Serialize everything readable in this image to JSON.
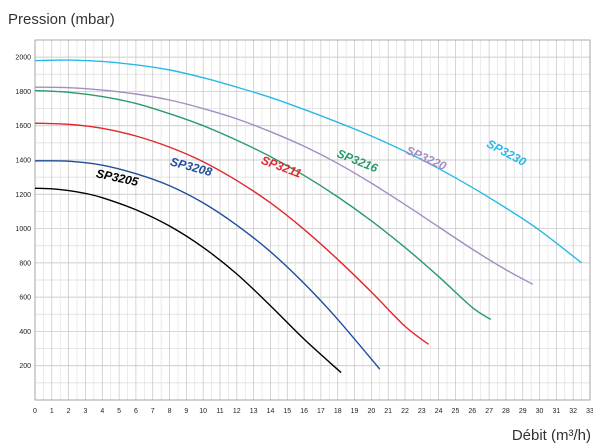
{
  "chart_data": {
    "type": "line",
    "title": "",
    "ylabel": "Pression (mbar)",
    "xlabel": "Débit (m³/h)",
    "xlim": [
      0,
      33
    ],
    "ylim": [
      0,
      2100
    ],
    "x_ticks": [
      0,
      1,
      2,
      3,
      4,
      5,
      6,
      7,
      8,
      9,
      10,
      11,
      12,
      13,
      14,
      15,
      16,
      17,
      18,
      19,
      20,
      21,
      22,
      23,
      24,
      25,
      26,
      27,
      28,
      29,
      30,
      31,
      32,
      33
    ],
    "y_ticks": [
      200,
      400,
      600,
      800,
      1000,
      1200,
      1400,
      1600,
      1800,
      2000
    ],
    "grid": true,
    "legend": "inline-labels",
    "series": [
      {
        "name": "SP3205",
        "color": "#000000",
        "x": [
          0,
          1,
          2,
          3,
          4,
          6,
          8,
          10,
          12,
          14,
          16,
          18.2
        ],
        "y": [
          1235,
          1232,
          1222,
          1205,
          1180,
          1110,
          1015,
          890,
          735,
          550,
          355,
          160
        ]
      },
      {
        "name": "SP3208",
        "color": "#1f4e9b",
        "x": [
          0,
          2,
          4,
          6,
          8,
          10,
          12,
          14,
          16,
          18,
          20.5
        ],
        "y": [
          1395,
          1393,
          1370,
          1320,
          1250,
          1150,
          1020,
          865,
          680,
          470,
          180
        ]
      },
      {
        "name": "SP3211",
        "color": "#e3262b",
        "x": [
          0,
          2,
          4,
          6,
          8,
          10,
          12,
          14,
          16,
          18,
          20,
          22,
          23.4
        ],
        "y": [
          1615,
          1608,
          1585,
          1540,
          1475,
          1390,
          1280,
          1150,
          995,
          820,
          630,
          430,
          325
        ]
      },
      {
        "name": "SP3216",
        "color": "#2a9a6b",
        "x": [
          0,
          2,
          4,
          6,
          8,
          10,
          12,
          14,
          16,
          18,
          20,
          22,
          24,
          26,
          27.1
        ],
        "y": [
          1805,
          1795,
          1770,
          1730,
          1670,
          1600,
          1515,
          1420,
          1310,
          1185,
          1045,
          890,
          720,
          540,
          470
        ]
      },
      {
        "name": "SP3220",
        "color": "#a58cc2",
        "x": [
          0,
          2,
          4,
          6,
          8,
          10,
          12,
          14,
          16,
          18,
          20,
          22,
          24,
          26,
          28,
          29.6
        ],
        "y": [
          1825,
          1822,
          1808,
          1785,
          1750,
          1700,
          1640,
          1565,
          1480,
          1380,
          1265,
          1140,
          1010,
          880,
          760,
          675
        ]
      },
      {
        "name": "SP3230",
        "color": "#29b9e8",
        "x": [
          0,
          2,
          4,
          6,
          8,
          10,
          12,
          14,
          16,
          18,
          20,
          22,
          24,
          26,
          28,
          30,
          32.5
        ],
        "y": [
          1980,
          1983,
          1975,
          1955,
          1925,
          1880,
          1825,
          1765,
          1695,
          1620,
          1540,
          1450,
          1350,
          1240,
          1120,
          990,
          800
        ]
      }
    ],
    "labels": [
      {
        "text": "SP3205",
        "x": 3.6,
        "y": 1300,
        "rotate": 12,
        "color": "#000000"
      },
      {
        "text": "SP3208",
        "x": 8.0,
        "y": 1370,
        "rotate": 15,
        "color": "#1f4e9b"
      },
      {
        "text": "SP3211",
        "x": 13.4,
        "y": 1380,
        "rotate": 20,
        "color": "#e3262b"
      },
      {
        "text": "SP3216",
        "x": 17.9,
        "y": 1420,
        "rotate": 22,
        "color": "#2a9a6b"
      },
      {
        "text": "SP3220",
        "x": 22.0,
        "y": 1440,
        "rotate": 24,
        "color": "#a58cc2"
      },
      {
        "text": "SP3230",
        "x": 26.8,
        "y": 1480,
        "rotate": 28,
        "color": "#29b9e8"
      }
    ]
  }
}
